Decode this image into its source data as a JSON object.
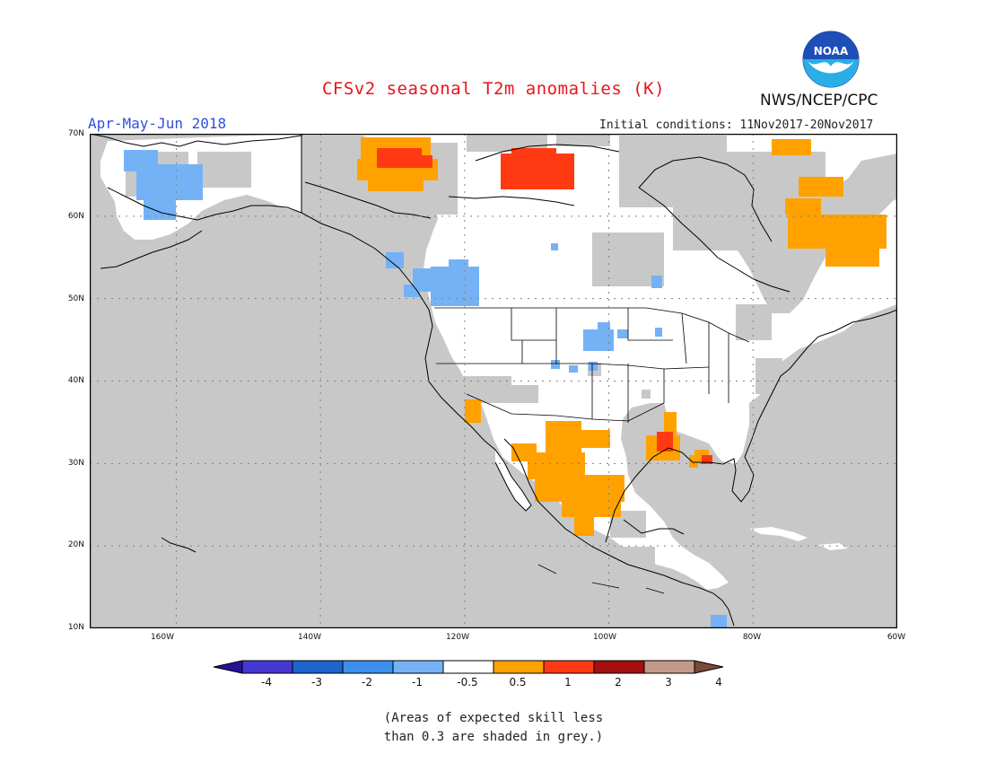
{
  "title": "CFSv2 seasonal T2m anomalies (K)",
  "season": "Apr-May-Jun 2018",
  "initial_conditions": "Initial conditions: 11Nov2017-20Nov2017",
  "agency": "NWS/NCEP/CPC",
  "logo_text": "NOAA",
  "map": {
    "lon_range": [
      -172,
      -60
    ],
    "lat_range": [
      10,
      70
    ],
    "lat_labels": [
      "70N",
      "60N",
      "50N",
      "40N",
      "30N",
      "20N",
      "10N"
    ],
    "lon_labels": [
      "160W",
      "140W",
      "120W",
      "100W",
      "80W",
      "60W"
    ],
    "colors": {
      "skill_grey": "#c8c8c8",
      "cool_-1_-0.5": "#74b2f5",
      "warm_0.5_1": "#ffa200",
      "warm_1_2": "#ff3a12",
      "coast": "#000000"
    }
  },
  "colorbar": {
    "colors": [
      "#2a0f99",
      "#4338d4",
      "#1e64cd",
      "#3a90ee",
      "#74b2f5",
      "#ffffff",
      "#ffa200",
      "#ff3a12",
      "#a50f0f",
      "#c39a8a",
      "#7a4a3a"
    ],
    "labels": [
      "-4",
      "-3",
      "-2",
      "-1",
      "-0.5",
      "0.5",
      "1",
      "2",
      "3",
      "4"
    ]
  },
  "note_line1": "(Areas of expected skill less",
  "note_line2": "than 0.3 are shaded in grey.)"
}
